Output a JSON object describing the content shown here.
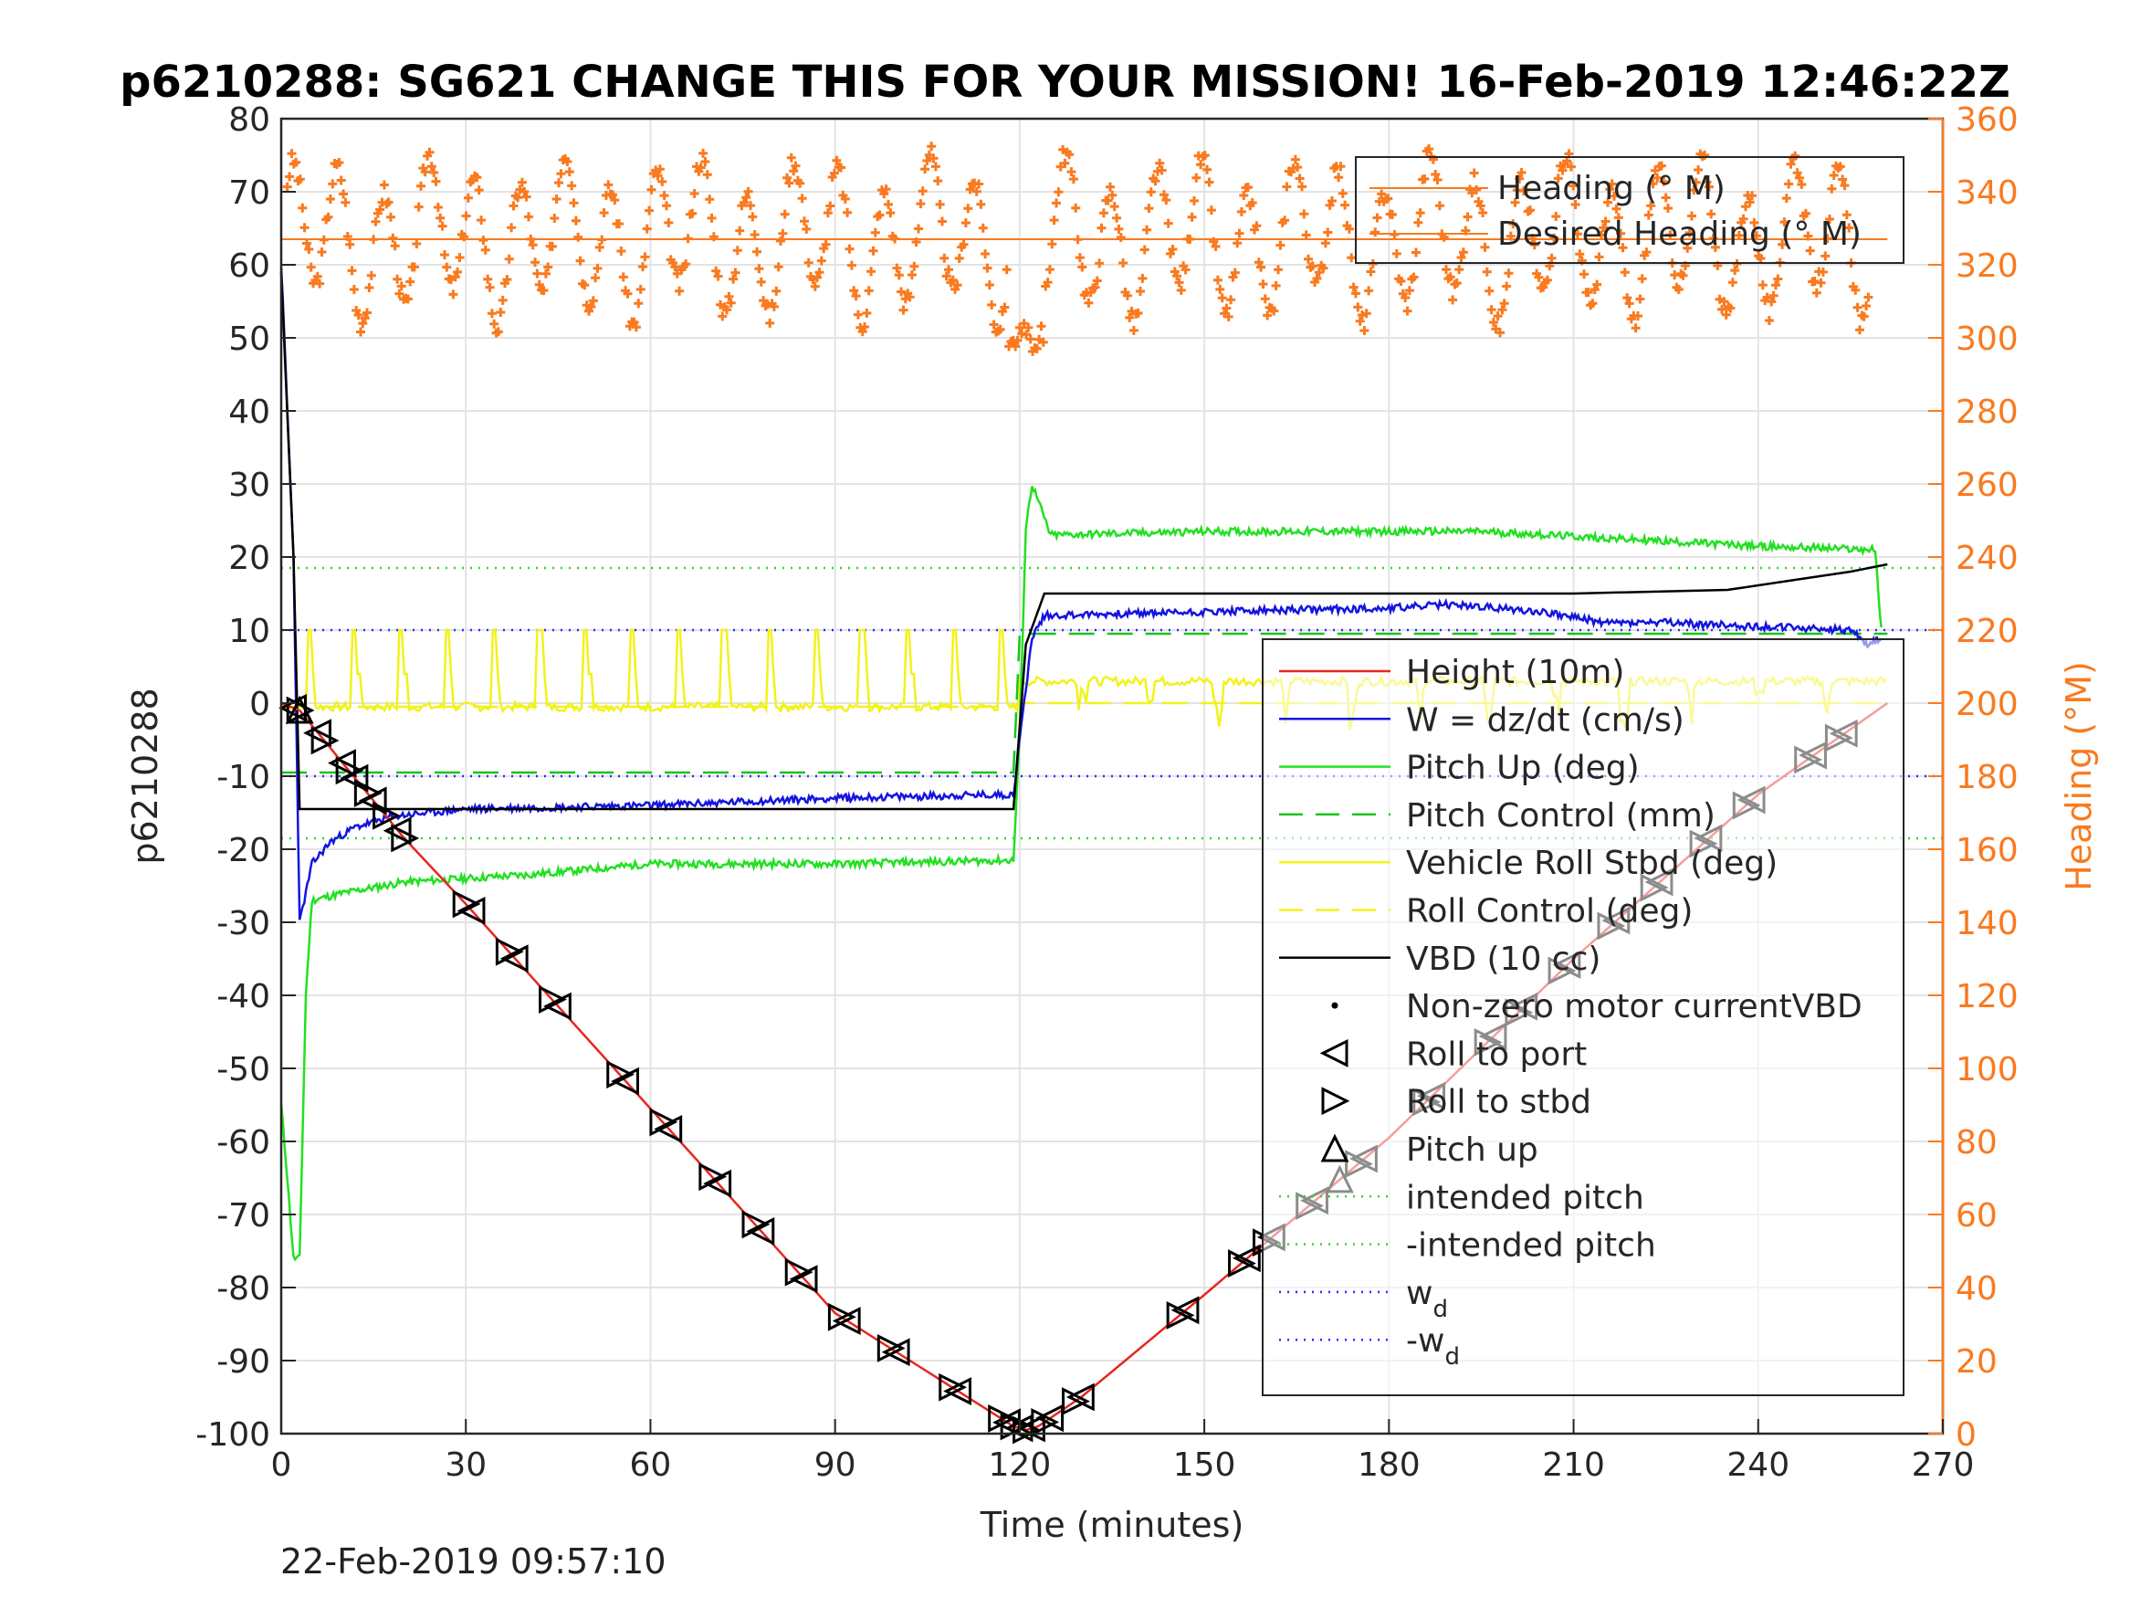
{
  "title": "p6210288: SG621 CHANGE THIS FOR YOUR MISSION! 16-Feb-2019 12:46:22Z",
  "footer": "22-Feb-2019 09:57:10",
  "chart_data": {
    "type": "line",
    "xlabel": "Time (minutes)",
    "ylabel": "p6210288",
    "y2label": "Heading (°M)",
    "xlim": [
      0,
      270
    ],
    "ylim": [
      -100,
      80
    ],
    "y2lim": [
      0,
      360
    ],
    "xticks": [
      0,
      30,
      60,
      90,
      120,
      150,
      180,
      210,
      240,
      270
    ],
    "yticks": [
      -100,
      -90,
      -80,
      -70,
      -60,
      -50,
      -40,
      -30,
      -20,
      -10,
      0,
      10,
      20,
      30,
      40,
      50,
      60,
      70,
      80
    ],
    "y2ticks": [
      0,
      20,
      40,
      60,
      80,
      100,
      120,
      140,
      160,
      180,
      200,
      220,
      240,
      260,
      280,
      300,
      320,
      340,
      360
    ],
    "grid": true,
    "colors": {
      "heading": "#f97a1f",
      "height": "#e8261f",
      "w": "#1414e0",
      "pitch": "#22e022",
      "pitch_control": "#19c419",
      "roll": "#f2f21a",
      "vbd": "#000000",
      "wd": "#2b2bff"
    },
    "heading_legend": [
      {
        "label": "Heading (° M)",
        "color": "#f97a1f"
      },
      {
        "label": "Desired Heading (° M)",
        "color": "#f97a1f"
      }
    ],
    "legend": [
      {
        "label": "Height (10m)",
        "style": "solid",
        "color": "#e8261f"
      },
      {
        "label": "W = dz/dt (cm/s)",
        "style": "solid",
        "color": "#1414e0"
      },
      {
        "label": "Pitch Up (deg)",
        "style": "solid",
        "color": "#22e022"
      },
      {
        "label": "Pitch Control (mm)",
        "style": "dash",
        "color": "#19c419"
      },
      {
        "label": "Vehicle Roll Stbd (deg)",
        "style": "solid",
        "color": "#f2f21a"
      },
      {
        "label": "Roll Control (deg)",
        "style": "dash",
        "color": "#f2f21a"
      },
      {
        "label": "VBD (10 cc)",
        "style": "solid",
        "color": "#000000"
      },
      {
        "label": "Non-zero motor currentVBD",
        "style": "dot",
        "color": "#000000"
      },
      {
        "label": "Roll to port",
        "style": "tri-left",
        "color": "#000000"
      },
      {
        "label": "Roll to stbd",
        "style": "tri-right",
        "color": "#000000"
      },
      {
        "label": "Pitch up",
        "style": "tri-up",
        "color": "#000000"
      },
      {
        "label": "intended pitch",
        "style": "dotted",
        "color": "#22e022"
      },
      {
        "label": "-intended pitch",
        "style": "dotted",
        "color": "#22e022"
      },
      {
        "label": "w",
        "sub": "d",
        "style": "dotted",
        "color": "#2b2bff"
      },
      {
        "label": "-w",
        "sub": "d",
        "style": "dotted",
        "color": "#2b2bff"
      }
    ],
    "series": {
      "height": {
        "x": [
          0,
          3,
          20,
          30,
          60,
          90,
          119,
          121,
          123,
          130,
          150,
          180,
          210,
          240,
          261
        ],
        "y": [
          0,
          -1,
          -18.5,
          -27.5,
          -55.5,
          -83.5,
          -99,
          -99.5,
          -99,
          -95,
          -81,
          -59.5,
          -35,
          -12.5,
          0
        ]
      },
      "w": {
        "x": [
          0,
          2,
          3,
          5,
          8,
          12,
          18,
          30,
          60,
          90,
          119,
          120,
          122,
          124,
          150,
          180,
          190,
          205,
          215,
          225,
          240,
          255,
          258,
          260
        ],
        "y": [
          60,
          20,
          -30,
          -22,
          -19,
          -17,
          -15.5,
          -14.5,
          -14,
          -13,
          -12.5,
          -5,
          9,
          12,
          12.5,
          13,
          13.5,
          12.5,
          11,
          11,
          10.5,
          10,
          8,
          9
        ]
      },
      "pitch": {
        "x": [
          0,
          1,
          2,
          3,
          4,
          5,
          10,
          20,
          40,
          60,
          90,
          119,
          120,
          121,
          122,
          125,
          150,
          180,
          195,
          217,
          240,
          259,
          260
        ],
        "y": [
          -55,
          -65,
          -76,
          -76,
          -40,
          -27,
          -26,
          -24.5,
          -23.5,
          -22,
          -22,
          -21.5,
          -4,
          24,
          30,
          23,
          23.5,
          23.5,
          23.5,
          22.5,
          21.5,
          21,
          10
        ]
      },
      "pitch_control": {
        "x": [
          0,
          119,
          120,
          261
        ],
        "y": [
          -9.5,
          -9.5,
          9.5,
          9.5
        ]
      },
      "vbd": {
        "x": [
          0,
          2,
          3,
          119,
          121,
          124,
          175,
          210,
          235,
          255,
          261
        ],
        "y": [
          59,
          20,
          -14.5,
          -14.5,
          8,
          15,
          15,
          15,
          15.5,
          18,
          19
        ]
      },
      "roll": {
        "base1": -0.5,
        "base2": 3,
        "x_switch": 120,
        "x_end": 261
      },
      "heading": {
        "desired": 327
      }
    },
    "markers": {
      "roll_port_x": [
        2,
        6,
        10,
        12,
        15,
        19,
        31,
        38,
        45,
        56,
        63,
        71,
        78,
        85,
        92,
        100,
        110,
        118,
        120,
        122,
        125,
        130,
        147,
        157,
        161,
        168,
        176,
        187,
        197,
        202,
        209,
        217,
        224,
        232,
        239,
        249,
        254
      ],
      "roll_stbd_x": [
        3,
        7,
        11,
        14,
        17,
        20,
        30,
        37,
        44,
        55,
        62,
        70,
        77,
        84,
        91,
        99,
        109,
        117,
        119,
        121,
        124,
        129,
        146,
        156,
        160,
        167,
        175,
        186,
        196,
        201,
        208,
        216,
        223,
        231,
        238,
        248,
        253
      ],
      "pitch_up_x": [
        3,
        172
      ]
    },
    "reference_lines": {
      "intended_pitch": 18.5,
      "wd": 10
    }
  }
}
